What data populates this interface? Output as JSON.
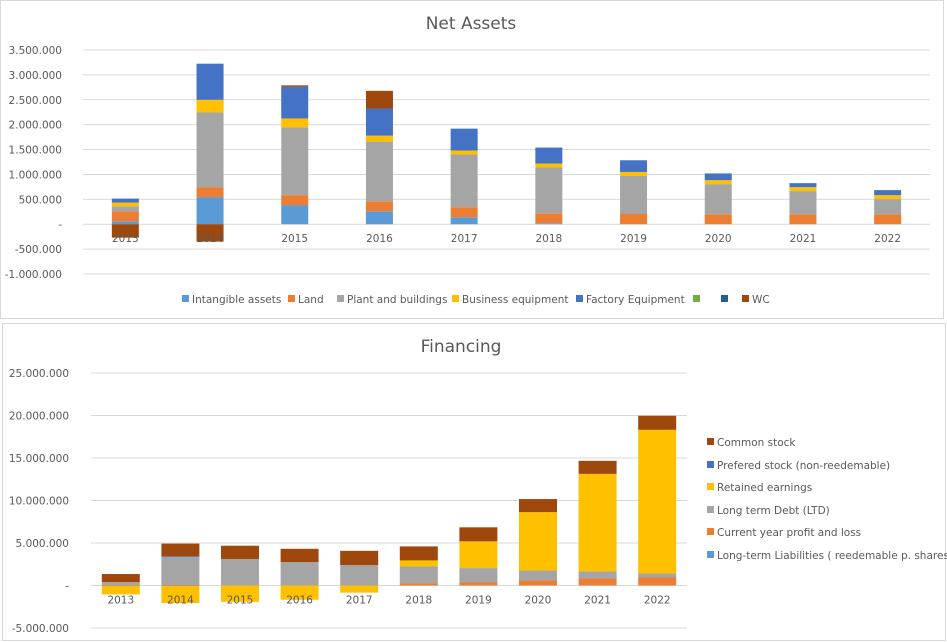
{
  "chart_data": [
    {
      "id": "net-assets",
      "type": "bar",
      "stacked": true,
      "title": "Net Assets",
      "xlabel": "",
      "ylabel": "",
      "ylim": [
        -1000000,
        3500000
      ],
      "ytick_step": 500000,
      "ytick_labels": [
        "-1.000.000",
        "-500.000",
        "-",
        "500.000",
        "1.000.000",
        "1.500.000",
        "2.000.000",
        "2.500.000",
        "3.000.000",
        "3.500.000"
      ],
      "grid": true,
      "legend_position": "bottom",
      "categories": [
        "2013",
        "2014",
        "2015",
        "2016",
        "2017",
        "2018",
        "2019",
        "2020",
        "2021",
        "2022"
      ],
      "series": [
        {
          "name": "Intangible assets",
          "color": "#5b9bd5",
          "values": [
            60000,
            545000,
            385000,
            260000,
            140000,
            20000,
            0,
            0,
            0,
            0
          ]
        },
        {
          "name": "Land",
          "color": "#ed7d31",
          "values": [
            200000,
            200000,
            200000,
            200000,
            200000,
            200000,
            205000,
            200000,
            200000,
            200000
          ]
        },
        {
          "name": "Plant and buildings",
          "color": "#a5a5a5",
          "values": [
            100000,
            1500000,
            1360000,
            1200000,
            1060000,
            920000,
            765000,
            605000,
            465000,
            305000
          ]
        },
        {
          "name": "Business equipment",
          "color": "#ffc000",
          "values": [
            75000,
            255000,
            180000,
            120000,
            80000,
            80000,
            80000,
            80000,
            80000,
            80000
          ]
        },
        {
          "name": "Factory Equipment",
          "color": "#4472c4",
          "values": [
            80000,
            725000,
            635000,
            545000,
            440000,
            320000,
            235000,
            135000,
            80000,
            100000
          ]
        },
        {
          "name": "",
          "color": "#70ad47",
          "values": [
            0,
            0,
            0,
            0,
            0,
            0,
            0,
            0,
            0,
            0
          ]
        },
        {
          "name": "",
          "color": "#255e91",
          "values": [
            0,
            0,
            0,
            0,
            0,
            0,
            0,
            0,
            0,
            0
          ]
        },
        {
          "name": "WC",
          "color": "#9e480e",
          "values": [
            -270000,
            -350000,
            30000,
            355000,
            0,
            0,
            0,
            0,
            0,
            0
          ]
        }
      ]
    },
    {
      "id": "financing",
      "type": "bar",
      "stacked": true,
      "title": "Financing",
      "xlabel": "",
      "ylabel": "",
      "ylim": [
        -5000000,
        25000000
      ],
      "ytick_step": 5000000,
      "ytick_labels": [
        "-5.000.000",
        "-",
        "5.000.000",
        "10.000.000",
        "15.000.000",
        "20.000.000",
        "25.000.000"
      ],
      "grid": true,
      "legend_position": "right",
      "categories": [
        "2013",
        "2014",
        "2015",
        "2016",
        "2017",
        "2018",
        "2019",
        "2020",
        "2021",
        "2022"
      ],
      "series": [
        {
          "name": "Long-term Liabilities ( reedemable p. shares)",
          "color": "#5b9bd5",
          "values": [
            0,
            0,
            0,
            0,
            0,
            0,
            0,
            0,
            0,
            0
          ]
        },
        {
          "name": "Current year profit and loss",
          "color": "#ed7d31",
          "values": [
            -50000,
            -60000,
            0,
            0,
            0,
            240000,
            355000,
            590000,
            830000,
            945000
          ]
        },
        {
          "name": "Long term Debt (LTD)",
          "color": "#a5a5a5",
          "values": [
            400000,
            3400000,
            3120000,
            2760000,
            2400000,
            2000000,
            1690000,
            1180000,
            830000,
            470000
          ]
        },
        {
          "name": "Retained earnings",
          "color": "#ffc000",
          "values": [
            -1000000,
            -2000000,
            -1920000,
            -1680000,
            -840000,
            710000,
            3150000,
            6860000,
            11470000,
            16900000
          ]
        },
        {
          "name": "Prefered stock  (non-reedemable)",
          "color": "#4472c4",
          "values": [
            0,
            50000,
            0,
            0,
            0,
            0,
            0,
            0,
            0,
            0
          ]
        },
        {
          "name": "Common stock",
          "color": "#9e480e",
          "values": [
            950000,
            1480000,
            1560000,
            1560000,
            1680000,
            1650000,
            1650000,
            1540000,
            1540000,
            1650000
          ]
        }
      ],
      "legend_order": [
        "Common stock",
        "Prefered stock  (non-reedemable)",
        "Retained earnings",
        "Long term Debt (LTD)",
        "Current year profit and loss",
        "Long-term Liabilities ( reedemable p. shares)"
      ]
    }
  ]
}
